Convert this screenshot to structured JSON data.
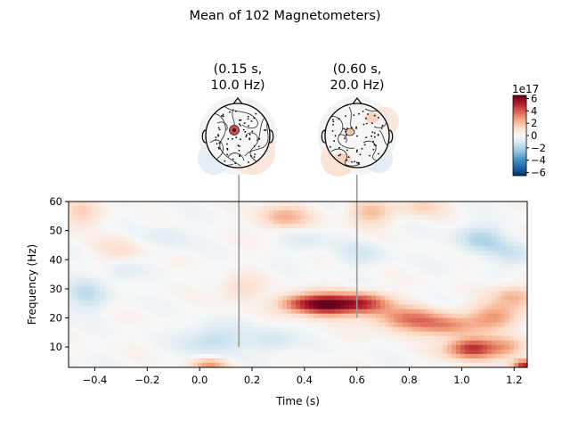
{
  "chart_data": {
    "type": "heatmap",
    "title": "Mean of 102 Magnetometers)",
    "xlabel": "Time (s)",
    "ylabel": "Frequency (Hz)",
    "xlim": [
      -0.5,
      1.25
    ],
    "ylim": [
      3,
      60
    ],
    "xticks": [
      "−0.4",
      "−0.2",
      "0.0",
      "0.2",
      "0.4",
      "0.6",
      "0.8",
      "1.0",
      "1.2"
    ],
    "xtick_values": [
      -0.4,
      -0.2,
      0.0,
      0.2,
      0.4,
      0.6,
      0.8,
      1.0,
      1.2
    ],
    "yticks": [
      "10",
      "20",
      "30",
      "40",
      "50",
      "60"
    ],
    "ytick_values": [
      10,
      20,
      30,
      40,
      50,
      60
    ],
    "colormap": "RdBu_r",
    "colorbar": {
      "scale_label": "1e17",
      "range": [
        -6.5,
        6.5
      ],
      "ticks": [
        "6",
        "4",
        "2",
        "0",
        "−2",
        "−4",
        "−6"
      ],
      "tick_values": [
        6,
        4,
        2,
        0,
        -2,
        -4,
        -6
      ]
    },
    "topomaps": [
      {
        "label_line1": "(0.15 s,",
        "label_line2": "10.0 Hz)",
        "time": 0.15,
        "freq": 10.0
      },
      {
        "label_line1": "(0.60 s,",
        "label_line2": "20.0 Hz)",
        "time": 0.6,
        "freq": 20.0
      }
    ],
    "blobs": [
      {
        "t": 0.48,
        "f": 24.5,
        "st": 0.075,
        "sf": 2.6,
        "a": 6.0
      },
      {
        "t": 0.63,
        "f": 25.0,
        "st": 0.07,
        "sf": 2.6,
        "a": 4.2
      },
      {
        "t": 0.37,
        "f": 25.0,
        "st": 0.06,
        "sf": 2.2,
        "a": 2.6
      },
      {
        "t": 0.8,
        "f": 19.5,
        "st": 0.1,
        "sf": 3.0,
        "a": 3.2
      },
      {
        "t": 0.95,
        "f": 17.0,
        "st": 0.08,
        "sf": 2.5,
        "a": 2.4
      },
      {
        "t": 1.04,
        "f": 9.5,
        "st": 0.07,
        "sf": 2.6,
        "a": 5.0
      },
      {
        "t": 1.18,
        "f": 10.0,
        "st": 0.05,
        "sf": 2.5,
        "a": 2.0
      },
      {
        "t": 1.13,
        "f": 20.5,
        "st": 0.07,
        "sf": 3.0,
        "a": 2.8
      },
      {
        "t": 1.2,
        "f": 27.5,
        "st": 0.06,
        "sf": 2.8,
        "a": 2.2
      },
      {
        "t": 1.24,
        "f": 3.5,
        "st": 0.03,
        "sf": 1.6,
        "a": 5.0
      },
      {
        "t": 0.04,
        "f": 4.0,
        "st": 0.05,
        "sf": 1.5,
        "a": 2.6
      },
      {
        "t": 0.32,
        "f": 54.5,
        "st": 0.07,
        "sf": 3.0,
        "a": 2.3
      },
      {
        "t": 0.65,
        "f": 56.0,
        "st": 0.06,
        "sf": 3.0,
        "a": 2.0
      },
      {
        "t": 0.85,
        "f": 58.5,
        "st": 0.06,
        "sf": 2.5,
        "a": 1.5
      },
      {
        "t": -0.46,
        "f": 56.0,
        "st": 0.05,
        "sf": 3.5,
        "a": 1.5
      },
      {
        "t": -0.3,
        "f": 42.0,
        "st": 0.06,
        "sf": 4.0,
        "a": 1.2
      },
      {
        "t": 0.15,
        "f": 30.0,
        "st": 0.06,
        "sf": 3.0,
        "a": 1.3
      },
      {
        "t": -0.43,
        "f": 28.0,
        "st": 0.06,
        "sf": 4.0,
        "a": -1.5
      },
      {
        "t": -0.3,
        "f": 37.0,
        "st": 0.05,
        "sf": 3.0,
        "a": -1.2
      },
      {
        "t": 0.05,
        "f": 12.5,
        "st": 0.08,
        "sf": 3.5,
        "a": -1.8
      },
      {
        "t": 0.28,
        "f": 12.0,
        "st": 0.06,
        "sf": 3.0,
        "a": -1.3
      },
      {
        "t": 1.07,
        "f": 47.0,
        "st": 0.07,
        "sf": 3.5,
        "a": -1.8
      },
      {
        "t": 1.2,
        "f": 42.0,
        "st": 0.06,
        "sf": 3.0,
        "a": -1.2
      },
      {
        "t": 0.62,
        "f": 42.0,
        "st": 0.07,
        "sf": 3.0,
        "a": -1.0
      },
      {
        "t": 0.4,
        "f": 47.0,
        "st": 0.06,
        "sf": 3.0,
        "a": -0.9
      },
      {
        "t": -0.12,
        "f": 48.0,
        "st": 0.06,
        "sf": 3.5,
        "a": -0.8
      }
    ]
  }
}
